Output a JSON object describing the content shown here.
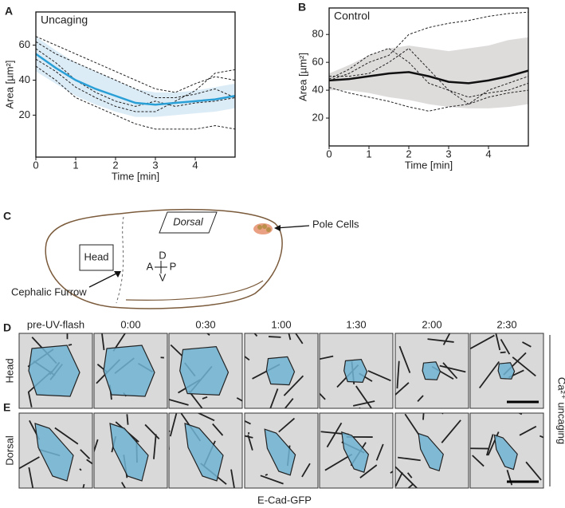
{
  "chart_data": [
    {
      "type": "line",
      "panel": "A",
      "title": "Uncaging",
      "title_color": "#2a9fd6",
      "xlabel": "Time [min]",
      "ylabel": "Area [µm²]",
      "x": [
        0,
        0.5,
        1,
        1.5,
        2,
        2.5,
        3,
        3.5,
        4,
        4.5,
        5
      ],
      "xlim": [
        0,
        5
      ],
      "ylim": [
        -4,
        79
      ],
      "xticks": [
        0,
        1,
        2,
        3,
        4
      ],
      "yticks": [
        20,
        40,
        60
      ],
      "band": {
        "color": "#dcecf7",
        "lower": [
          45,
          38,
          31,
          26,
          22,
          19,
          19,
          20,
          21,
          22,
          24
        ],
        "upper": [
          65,
          57,
          50,
          45,
          40,
          35,
          33,
          33,
          34,
          36,
          38
        ]
      },
      "series": [
        {
          "color": "#222222",
          "dash": true,
          "values": [
            62,
            55,
            50,
            45,
            40,
            35,
            30,
            30,
            32,
            35,
            30
          ]
        },
        {
          "color": "#222222",
          "dash": true,
          "values": [
            58,
            50,
            40,
            33,
            28,
            25,
            28,
            25,
            27,
            28,
            30
          ]
        },
        {
          "color": "#222222",
          "dash": true,
          "values": [
            48,
            40,
            30,
            25,
            20,
            15,
            12,
            12,
            12,
            14,
            12
          ]
        },
        {
          "color": "#222222",
          "dash": true,
          "values": [
            65,
            60,
            55,
            50,
            45,
            40,
            35,
            33,
            38,
            42,
            40
          ]
        },
        {
          "color": "#222222",
          "dash": true,
          "values": [
            52,
            45,
            36,
            30,
            25,
            22,
            22,
            28,
            34,
            44,
            46
          ]
        },
        {
          "color": "#2a9fd6",
          "dash": false,
          "values": [
            55,
            47,
            40,
            35,
            31,
            27,
            26,
            27,
            28,
            29,
            31
          ]
        }
      ]
    },
    {
      "type": "line",
      "panel": "B",
      "title": "Control",
      "title_color": "#222222",
      "xlabel": "Time [min]",
      "ylabel": "Area [µm²]",
      "x": [
        0,
        0.5,
        1,
        1.5,
        2,
        2.5,
        3,
        3.5,
        4,
        4.5,
        5
      ],
      "xlim": [
        0,
        5
      ],
      "ylim": [
        0,
        99
      ],
      "xticks": [
        0,
        1,
        2,
        3,
        4
      ],
      "yticks": [
        20,
        40,
        60,
        80
      ],
      "band": {
        "color": "#dedbdb",
        "lower": [
          40,
          40,
          38,
          35,
          33,
          30,
          28,
          27,
          27,
          28,
          30
        ],
        "upper": [
          52,
          58,
          65,
          70,
          72,
          70,
          68,
          70,
          72,
          76,
          78
        ]
      },
      "series": [
        {
          "color": "#222222",
          "dash": true,
          "values": [
            47,
            52,
            60,
            65,
            80,
            85,
            88,
            90,
            93,
            95,
            96
          ]
        },
        {
          "color": "#222222",
          "dash": true,
          "values": [
            42,
            38,
            35,
            32,
            28,
            25,
            28,
            30,
            35,
            38,
            40
          ]
        },
        {
          "color": "#222222",
          "dash": true,
          "values": [
            48,
            55,
            65,
            70,
            60,
            45,
            40,
            35,
            38,
            40,
            45
          ]
        },
        {
          "color": "#222222",
          "dash": true,
          "values": [
            50,
            50,
            52,
            60,
            70,
            55,
            40,
            30,
            40,
            45,
            50
          ]
        },
        {
          "color": "#111111",
          "dash": false,
          "values": [
            47,
            48,
            50,
            52,
            53,
            50,
            46,
            45,
            47,
            50,
            54
          ]
        }
      ]
    }
  ],
  "diagram": {
    "panel": "C",
    "dorsal": "Dorsal",
    "pole_cells": "Pole Cells",
    "head": "Head",
    "axes": {
      "d": "D",
      "a": "A",
      "p": "P",
      "v": "V"
    },
    "cephalic_furrow": "Cephalic Furrow"
  },
  "images": {
    "columns": [
      "pre-UV-flash",
      "0:00",
      "0:30",
      "1:00",
      "1:30",
      "2:00",
      "2:30"
    ],
    "rows": [
      {
        "panel": "D",
        "name": "Head"
      },
      {
        "panel": "E",
        "name": "Dorsal"
      }
    ],
    "side_label": "Ca²⁺ uncaging",
    "caption": "E-Cad-GFP"
  }
}
